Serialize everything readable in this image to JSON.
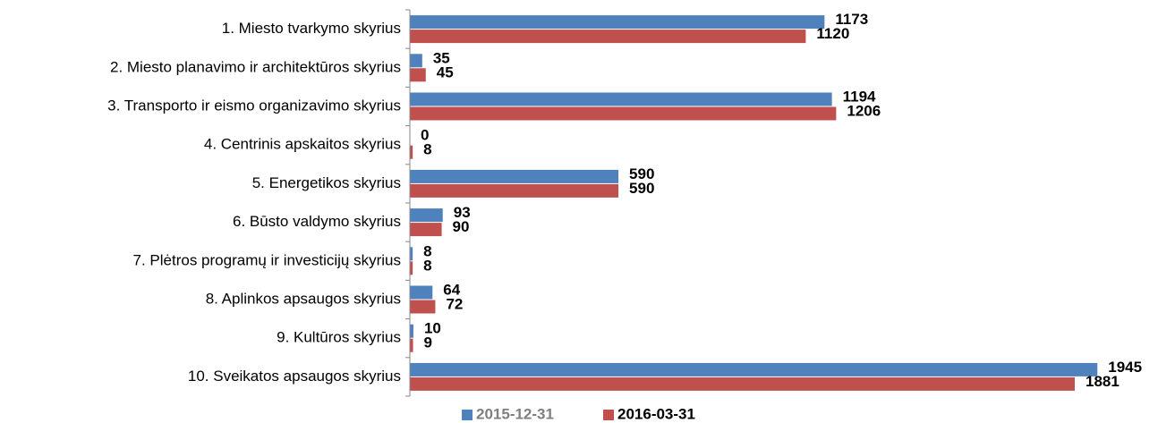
{
  "chart_data": {
    "type": "bar",
    "orientation": "horizontal",
    "categories": [
      "1. Miesto tvarkymo skyrius",
      "2. Miesto planavimo ir architektūros skyrius",
      "3. Transporto ir eismo organizavimo skyrius",
      "4. Centrinis apskaitos skyrius",
      "5. Energetikos skyrius",
      "6. Būsto valdymo skyrius",
      "7. Plėtros programų ir investicijų skyrius",
      "8. Aplinkos apsaugos skyrius",
      "9. Kultūros skyrius",
      "10. Sveikatos apsaugos skyrius"
    ],
    "series": [
      {
        "name": "2015-12-31",
        "color": "#4f81bd",
        "values": [
          1173,
          35,
          1194,
          0,
          590,
          93,
          8,
          64,
          10,
          1945
        ]
      },
      {
        "name": "2016-03-31",
        "color": "#c0504d",
        "values": [
          1120,
          45,
          1206,
          8,
          590,
          90,
          8,
          72,
          9,
          1881
        ]
      }
    ],
    "xlim": [
      0,
      2000
    ],
    "legend": "bottom"
  }
}
